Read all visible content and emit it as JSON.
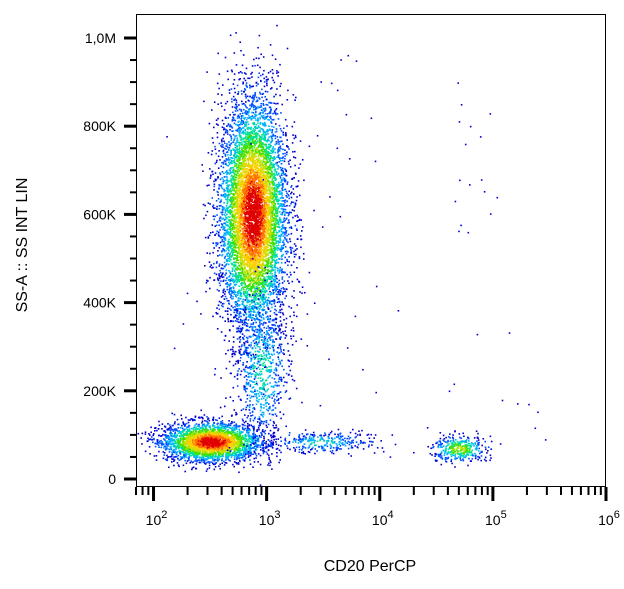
{
  "chart_data": {
    "type": "scatter",
    "subtype": "flow-cytometry-density-dot-plot",
    "xlabel": "CD20 PerCP",
    "ylabel": "SS-A :: SS INT LIN",
    "x_scale": "log",
    "y_scale": "linear",
    "xlim": [
      70,
      1000000
    ],
    "ylim": [
      0,
      1000000
    ],
    "x_ticks": [
      {
        "value": 100,
        "base": "10",
        "exp": "2"
      },
      {
        "value": 1000,
        "base": "10",
        "exp": "3"
      },
      {
        "value": 10000,
        "base": "10",
        "exp": "4"
      },
      {
        "value": 100000,
        "base": "10",
        "exp": "5"
      },
      {
        "value": 1000000,
        "base": "10",
        "exp": "6"
      }
    ],
    "y_ticks": [
      {
        "value": 0,
        "label": "0"
      },
      {
        "value": 200000,
        "label": "200K"
      },
      {
        "value": 400000,
        "label": "400K"
      },
      {
        "value": 600000,
        "label": "600K"
      },
      {
        "value": 800000,
        "label": "800K"
      },
      {
        "value": 1000000,
        "label": "1,0M"
      }
    ],
    "grid": false,
    "colormap": [
      "#0000d0",
      "#0050ff",
      "#00b0ff",
      "#00e0a0",
      "#40e000",
      "#c0e000",
      "#ffd000",
      "#ff7000",
      "#e00000"
    ],
    "populations": [
      {
        "cx": 750,
        "cy": 600000,
        "sx_decades": 0.15,
        "sy": 130000,
        "n": 7000,
        "peak": 1.0
      },
      {
        "cx": 320,
        "cy": 85000,
        "sx_decades": 0.22,
        "sy": 22000,
        "n": 2800,
        "peak": 1.0
      },
      {
        "cx": 50000,
        "cy": 70000,
        "sx_decades": 0.12,
        "sy": 15000,
        "n": 360,
        "peak": 0.55
      },
      {
        "cx": 900,
        "cy": 250000,
        "sx_decades": 0.12,
        "sy": 90000,
        "n": 700,
        "peak": 0.35
      },
      {
        "cx": 3000,
        "cy": 85000,
        "sx_decades": 0.25,
        "sy": 12000,
        "n": 300,
        "peak": 0.3
      }
    ]
  }
}
